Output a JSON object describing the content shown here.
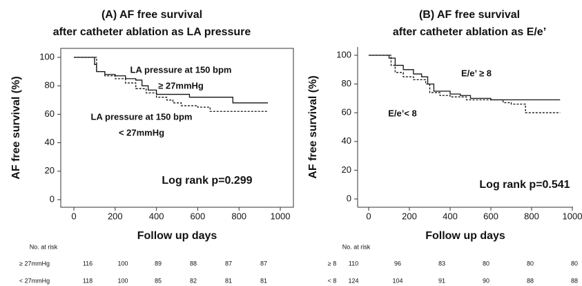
{
  "chart_data": [
    {
      "type": "line",
      "step": true,
      "frame": true,
      "title": "(A) AF free survival",
      "subtitle": "after catheter ablation as LA pressure",
      "xlabel": "Follow up days",
      "ylabel": "AF free survival (%)",
      "xlim": [
        0,
        1000
      ],
      "ylim": [
        0,
        100
      ],
      "xticks": [
        0,
        200,
        400,
        600,
        800,
        1000
      ],
      "yticks": [
        0,
        20,
        40,
        60,
        80,
        100
      ],
      "series": [
        {
          "name": "≥ 27mmHg",
          "color": "#111111",
          "dash": false,
          "x": [
            0,
            80,
            100,
            110,
            150,
            200,
            250,
            300,
            330,
            360,
            400,
            560,
            770,
            940
          ],
          "values": [
            100,
            100,
            95,
            90,
            88,
            87,
            85,
            84,
            80,
            77,
            74,
            72,
            68,
            68
          ]
        },
        {
          "name": "< 27mmHg",
          "color": "#111111",
          "dash": true,
          "x": [
            0,
            80,
            110,
            150,
            200,
            250,
            300,
            350,
            400,
            450,
            480,
            520,
            600,
            660,
            940
          ],
          "values": [
            100,
            100,
            90,
            87,
            85,
            82,
            78,
            75,
            72,
            70,
            68,
            66,
            65,
            62,
            62
          ]
        }
      ],
      "annotations": [
        "LA pressure at 150 bpm",
        "≥ 27mmHg",
        "LA pressure at 150 bpm",
        "< 27mmHg",
        "Log rank p=0.299"
      ],
      "risk_table": {
        "title": "No. at risk",
        "rows": [
          {
            "label": "≥ 27mmHg",
            "values": [
              "116",
              "100",
              "89",
              "88",
              "87",
              "87"
            ]
          },
          {
            "label": "< 27mmHg",
            "values": [
              "118",
              "100",
              "85",
              "82",
              "81",
              "81"
            ]
          }
        ]
      }
    },
    {
      "type": "line",
      "step": true,
      "frame": false,
      "title": "(B) AF free survival",
      "subtitle": "after catheter ablation as E/e’",
      "xlabel": "Follow up days",
      "ylabel": "AF free survival (%)",
      "xlim": [
        0,
        1000
      ],
      "ylim": [
        0,
        100
      ],
      "xticks": [
        0,
        200,
        400,
        600,
        800,
        1000
      ],
      "yticks": [
        0,
        20,
        40,
        60,
        80,
        100
      ],
      "series": [
        {
          "name": "≥ 8",
          "color": "#111111",
          "dash": false,
          "x": [
            0,
            90,
            100,
            130,
            170,
            220,
            260,
            290,
            320,
            400,
            450,
            500,
            600,
            940
          ],
          "values": [
            100,
            100,
            98,
            93,
            90,
            87,
            85,
            80,
            75,
            73,
            72,
            70,
            69,
            69
          ]
        },
        {
          "name": "< 8",
          "color": "#111111",
          "dash": true,
          "x": [
            0,
            90,
            110,
            130,
            170,
            220,
            280,
            300,
            350,
            400,
            480,
            600,
            660,
            700,
            770,
            940
          ],
          "values": [
            100,
            100,
            93,
            88,
            85,
            83,
            80,
            74,
            72,
            71,
            69,
            69,
            67,
            66,
            60,
            60
          ]
        }
      ],
      "annotations": [
        "E/e’ ≥ 8",
        "E/e’< 8",
        "Log rank p=0.541"
      ],
      "risk_table": {
        "title": "No. at risk",
        "rows": [
          {
            "label": "≥ 8",
            "values": [
              "110",
              "96",
              "83",
              "80",
              "80",
              "80"
            ]
          },
          {
            "label": "< 8",
            "values": [
              "124",
              "104",
              "91",
              "90",
              "88",
              "88"
            ]
          }
        ]
      }
    }
  ]
}
